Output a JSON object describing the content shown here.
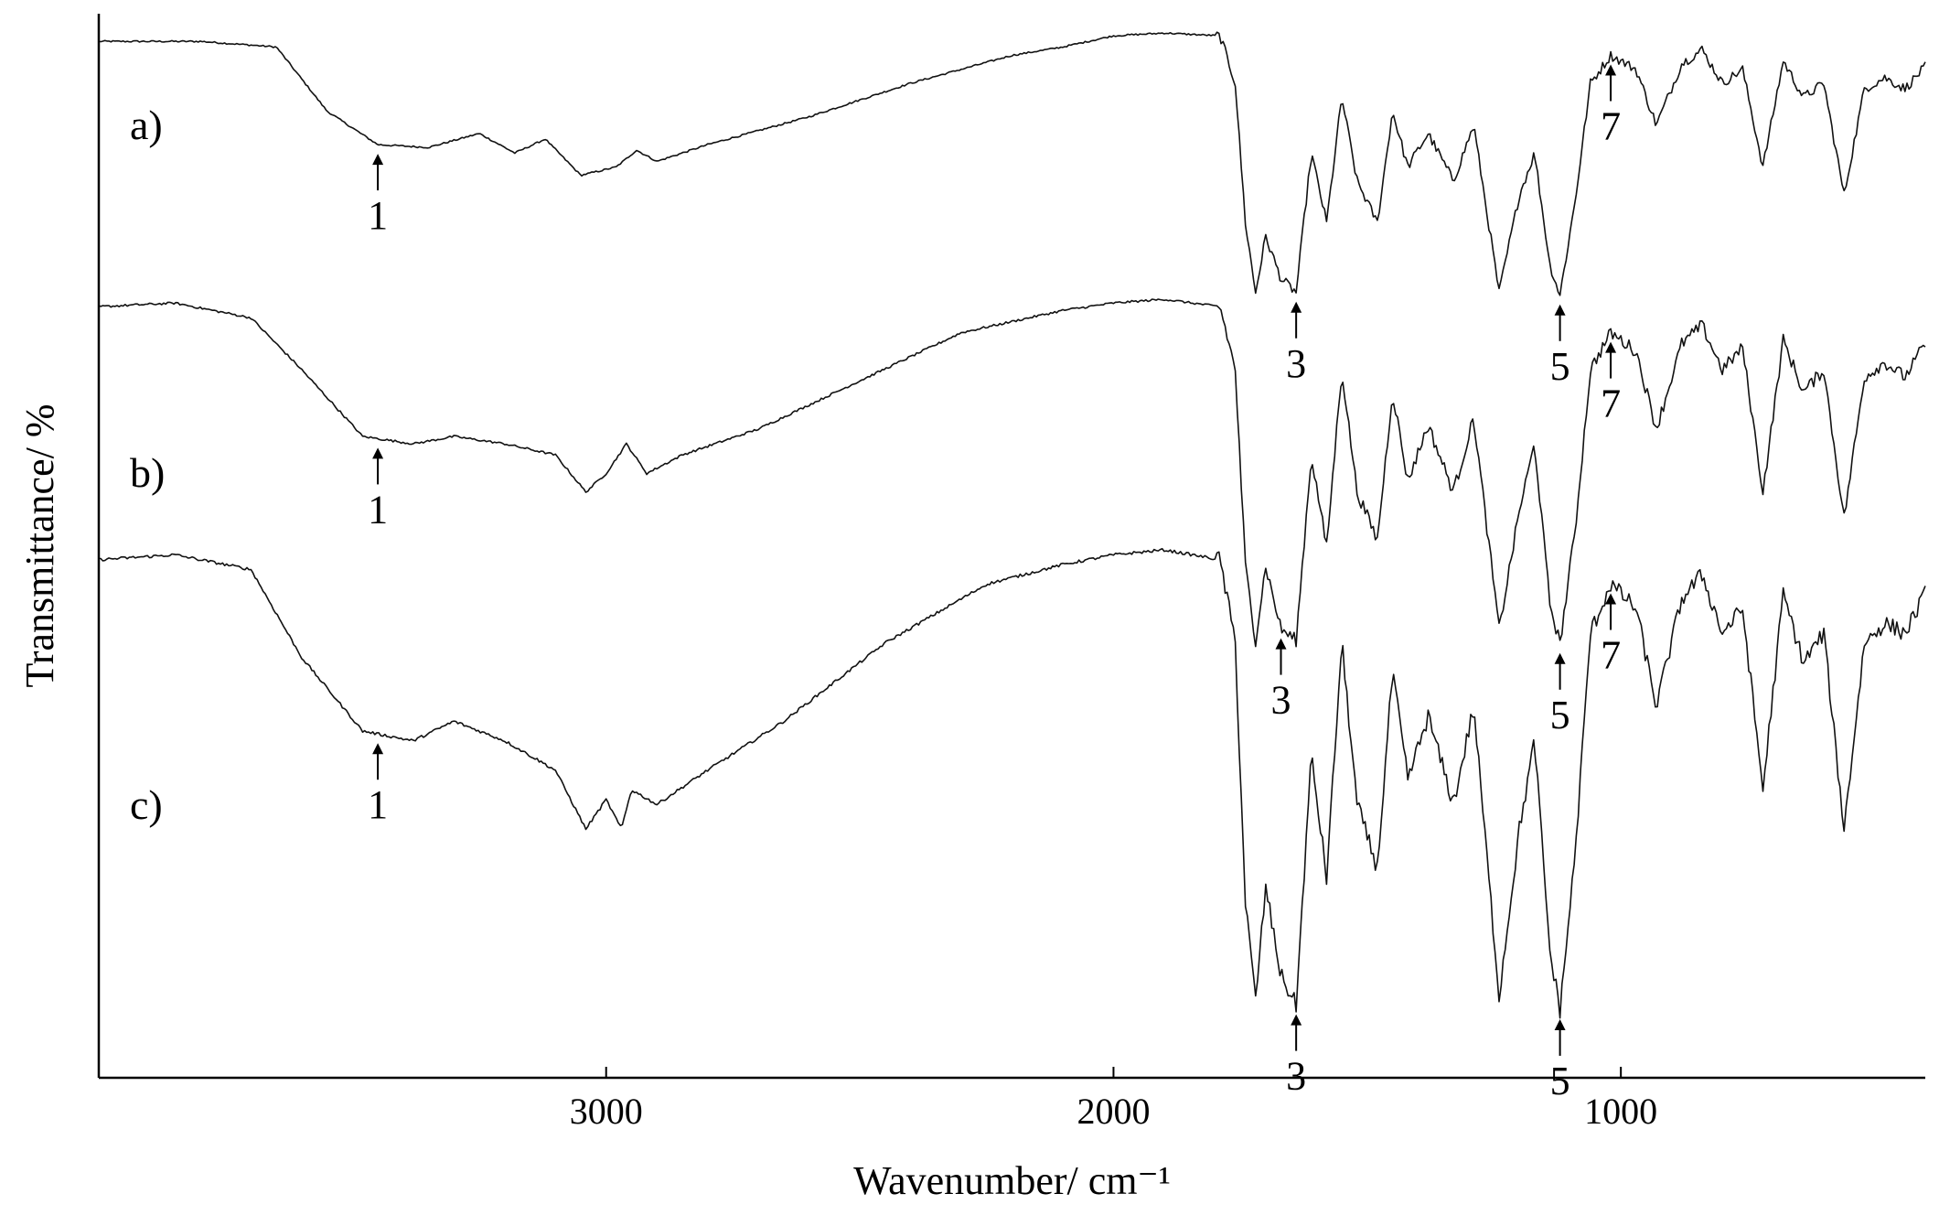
{
  "chart_data": {
    "type": "line",
    "xlabel": "Wavenumber/ cm⁻¹",
    "ylabel": "Transmittance/ %",
    "xlim": [
      4000,
      400
    ],
    "x_ticks": [
      3000,
      2000,
      1000
    ],
    "reversed_x": true,
    "y_ticks_shown": false,
    "grid": false,
    "legend": "none",
    "stroke_color": "#111111",
    "series": [
      {
        "label": "a)",
        "points": [
          [
            4000,
            0.95
          ],
          [
            3800,
            0.95
          ],
          [
            3650,
            0.93
          ],
          [
            3550,
            0.7
          ],
          [
            3450,
            0.58
          ],
          [
            3350,
            0.57
          ],
          [
            3250,
            0.62
          ],
          [
            3180,
            0.55
          ],
          [
            3120,
            0.6
          ],
          [
            3050,
            0.47
          ],
          [
            2980,
            0.5
          ],
          [
            2940,
            0.56
          ],
          [
            2900,
            0.52
          ],
          [
            2800,
            0.58
          ],
          [
            2600,
            0.68
          ],
          [
            2400,
            0.8
          ],
          [
            2200,
            0.9
          ],
          [
            2100,
            0.93
          ],
          [
            2000,
            0.97
          ],
          [
            1900,
            0.98
          ],
          [
            1790,
            0.97
          ],
          [
            1760,
            0.8
          ],
          [
            1740,
            0.3
          ],
          [
            1720,
            0.05
          ],
          [
            1700,
            0.25
          ],
          [
            1670,
            0.1
          ],
          [
            1640,
            0.05
          ],
          [
            1610,
            0.55
          ],
          [
            1580,
            0.3
          ],
          [
            1550,
            0.75
          ],
          [
            1520,
            0.45
          ],
          [
            1480,
            0.3
          ],
          [
            1450,
            0.7
          ],
          [
            1420,
            0.5
          ],
          [
            1380,
            0.62
          ],
          [
            1330,
            0.45
          ],
          [
            1290,
            0.65
          ],
          [
            1240,
            0.05
          ],
          [
            1200,
            0.4
          ],
          [
            1170,
            0.55
          ],
          [
            1140,
            0.15
          ],
          [
            1120,
            0.04
          ],
          [
            1090,
            0.38
          ],
          [
            1060,
            0.8
          ],
          [
            1020,
            0.9
          ],
          [
            970,
            0.85
          ],
          [
            930,
            0.65
          ],
          [
            880,
            0.87
          ],
          [
            840,
            0.92
          ],
          [
            800,
            0.8
          ],
          [
            760,
            0.85
          ],
          [
            720,
            0.5
          ],
          [
            680,
            0.88
          ],
          [
            640,
            0.75
          ],
          [
            600,
            0.8
          ],
          [
            560,
            0.4
          ],
          [
            520,
            0.78
          ],
          [
            480,
            0.82
          ],
          [
            440,
            0.78
          ],
          [
            400,
            0.86
          ]
        ],
        "peaks": [
          {
            "label": "1",
            "x": 3450
          },
          {
            "label": "3",
            "x": 1640
          },
          {
            "label": "5",
            "x": 1120
          },
          {
            "label": "7",
            "x": 1020
          }
        ]
      },
      {
        "label": "b)",
        "points": [
          [
            4000,
            0.95
          ],
          [
            3850,
            0.96
          ],
          [
            3700,
            0.92
          ],
          [
            3600,
            0.78
          ],
          [
            3480,
            0.6
          ],
          [
            3380,
            0.58
          ],
          [
            3300,
            0.6
          ],
          [
            3200,
            0.58
          ],
          [
            3100,
            0.55
          ],
          [
            3040,
            0.45
          ],
          [
            3000,
            0.5
          ],
          [
            2960,
            0.58
          ],
          [
            2920,
            0.5
          ],
          [
            2850,
            0.55
          ],
          [
            2700,
            0.62
          ],
          [
            2500,
            0.75
          ],
          [
            2300,
            0.88
          ],
          [
            2100,
            0.94
          ],
          [
            2000,
            0.96
          ],
          [
            1900,
            0.97
          ],
          [
            1790,
            0.95
          ],
          [
            1760,
            0.78
          ],
          [
            1740,
            0.25
          ],
          [
            1720,
            0.05
          ],
          [
            1700,
            0.25
          ],
          [
            1670,
            0.08
          ],
          [
            1640,
            0.05
          ],
          [
            1610,
            0.55
          ],
          [
            1580,
            0.3
          ],
          [
            1550,
            0.78
          ],
          [
            1520,
            0.45
          ],
          [
            1480,
            0.32
          ],
          [
            1450,
            0.72
          ],
          [
            1420,
            0.48
          ],
          [
            1380,
            0.63
          ],
          [
            1330,
            0.45
          ],
          [
            1290,
            0.65
          ],
          [
            1240,
            0.08
          ],
          [
            1200,
            0.4
          ],
          [
            1170,
            0.58
          ],
          [
            1140,
            0.15
          ],
          [
            1120,
            0.04
          ],
          [
            1090,
            0.35
          ],
          [
            1060,
            0.78
          ],
          [
            1020,
            0.88
          ],
          [
            970,
            0.83
          ],
          [
            930,
            0.62
          ],
          [
            880,
            0.85
          ],
          [
            840,
            0.9
          ],
          [
            800,
            0.78
          ],
          [
            760,
            0.84
          ],
          [
            720,
            0.45
          ],
          [
            680,
            0.86
          ],
          [
            640,
            0.72
          ],
          [
            600,
            0.78
          ],
          [
            560,
            0.38
          ],
          [
            520,
            0.76
          ],
          [
            480,
            0.8
          ],
          [
            440,
            0.76
          ],
          [
            400,
            0.85
          ]
        ],
        "peaks": [
          {
            "label": "1",
            "x": 3450
          },
          {
            "label": "3",
            "x": 1670
          },
          {
            "label": "5",
            "x": 1120
          },
          {
            "label": "7",
            "x": 1020
          }
        ]
      },
      {
        "label": "c)",
        "points": [
          [
            4000,
            0.95
          ],
          [
            3850,
            0.96
          ],
          [
            3700,
            0.93
          ],
          [
            3600,
            0.75
          ],
          [
            3480,
            0.6
          ],
          [
            3380,
            0.58
          ],
          [
            3300,
            0.62
          ],
          [
            3200,
            0.58
          ],
          [
            3100,
            0.52
          ],
          [
            3040,
            0.4
          ],
          [
            3000,
            0.46
          ],
          [
            2970,
            0.4
          ],
          [
            2950,
            0.48
          ],
          [
            2900,
            0.45
          ],
          [
            2800,
            0.52
          ],
          [
            2650,
            0.62
          ],
          [
            2450,
            0.78
          ],
          [
            2250,
            0.9
          ],
          [
            2100,
            0.94
          ],
          [
            2000,
            0.96
          ],
          [
            1900,
            0.97
          ],
          [
            1790,
            0.95
          ],
          [
            1760,
            0.78
          ],
          [
            1740,
            0.25
          ],
          [
            1720,
            0.05
          ],
          [
            1700,
            0.28
          ],
          [
            1670,
            0.1
          ],
          [
            1640,
            0.04
          ],
          [
            1610,
            0.55
          ],
          [
            1580,
            0.3
          ],
          [
            1550,
            0.78
          ],
          [
            1520,
            0.45
          ],
          [
            1480,
            0.32
          ],
          [
            1450,
            0.72
          ],
          [
            1420,
            0.5
          ],
          [
            1380,
            0.63
          ],
          [
            1330,
            0.45
          ],
          [
            1290,
            0.65
          ],
          [
            1240,
            0.06
          ],
          [
            1200,
            0.4
          ],
          [
            1170,
            0.58
          ],
          [
            1140,
            0.15
          ],
          [
            1120,
            0.03
          ],
          [
            1090,
            0.35
          ],
          [
            1060,
            0.8
          ],
          [
            1020,
            0.9
          ],
          [
            970,
            0.85
          ],
          [
            930,
            0.65
          ],
          [
            880,
            0.87
          ],
          [
            840,
            0.92
          ],
          [
            800,
            0.8
          ],
          [
            760,
            0.85
          ],
          [
            720,
            0.48
          ],
          [
            680,
            0.88
          ],
          [
            640,
            0.74
          ],
          [
            600,
            0.8
          ],
          [
            560,
            0.4
          ],
          [
            520,
            0.78
          ],
          [
            480,
            0.82
          ],
          [
            440,
            0.8
          ],
          [
            400,
            0.88
          ]
        ],
        "peaks": [
          {
            "label": "1",
            "x": 3450
          },
          {
            "label": "3",
            "x": 1640
          },
          {
            "label": "5",
            "x": 1120
          },
          {
            "label": "7",
            "x": 1020
          }
        ]
      }
    ]
  }
}
